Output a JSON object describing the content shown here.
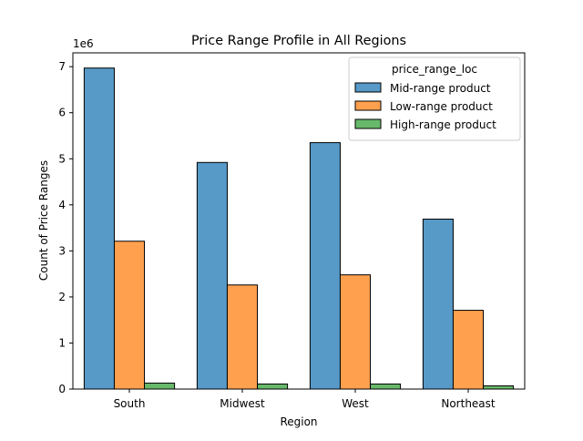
{
  "chart_data": {
    "type": "bar",
    "title": "Price Range Profile in All Regions",
    "xlabel": "Region",
    "ylabel": "Count of Price Ranges",
    "y_offset_label": "1e6",
    "categories": [
      "South",
      "Midwest",
      "West",
      "Northeast"
    ],
    "series": [
      {
        "name": "Mid-range product",
        "color": "#5799c7",
        "values": [
          6.97,
          4.92,
          5.35,
          3.69
        ]
      },
      {
        "name": "Low-range product",
        "color": "#ffa04f",
        "values": [
          3.21,
          2.26,
          2.48,
          1.71
        ]
      },
      {
        "name": "High-range product",
        "color": "#67b86a",
        "values": [
          0.13,
          0.11,
          0.11,
          0.07
        ]
      }
    ],
    "ylim": [
      0,
      7.3
    ],
    "yticks": [
      "0",
      "1",
      "2",
      "3",
      "4",
      "5",
      "6",
      "7"
    ],
    "legend": {
      "title": "price_range_loc",
      "placement": "top-right"
    },
    "grid": false
  }
}
